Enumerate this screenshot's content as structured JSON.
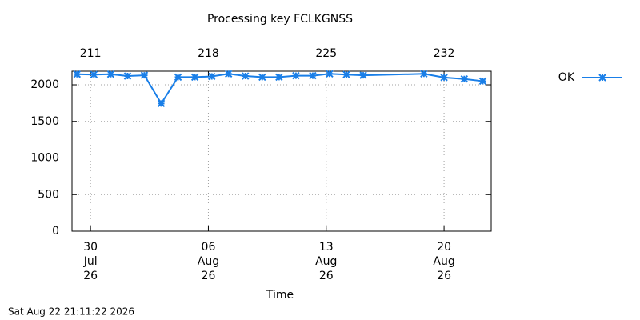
{
  "chart_data": {
    "type": "line",
    "title": "Processing key FCLKGNSS",
    "x_label": "Time",
    "footer": "Sat Aug 22 21:11:22 2026",
    "x": [
      210.2,
      211.2,
      212.2,
      213.2,
      214.2,
      215.2,
      216.2,
      217.2,
      218.2,
      219.2,
      220.2,
      221.2,
      222.2,
      223.2,
      224.2,
      225.2,
      226.2,
      227.2,
      230.8,
      232.0,
      233.2,
      234.3
    ],
    "series": [
      {
        "name": "OK",
        "color": "#1a7fe8",
        "values": [
          2145,
          2140,
          2145,
          2120,
          2130,
          1745,
          2105,
          2105,
          2115,
          2150,
          2120,
          2105,
          2105,
          2125,
          2125,
          2150,
          2140,
          2130,
          2150,
          2100,
          2080,
          2050
        ]
      }
    ],
    "xlim": [
      209.9,
      234.8
    ],
    "xticks": [
      {
        "value": 211,
        "label": "30 Jul 26"
      },
      {
        "value": 218,
        "label": "06 Aug 26"
      },
      {
        "value": 225,
        "label": "13 Aug 26"
      },
      {
        "value": 232,
        "label": "20 Aug 26"
      }
    ],
    "x2ticks": [
      211,
      218,
      225,
      232
    ],
    "ylim": [
      0,
      2186
    ],
    "yticks": [
      0,
      500,
      1000,
      1500,
      2000
    ],
    "grid": true,
    "legend": "right"
  }
}
